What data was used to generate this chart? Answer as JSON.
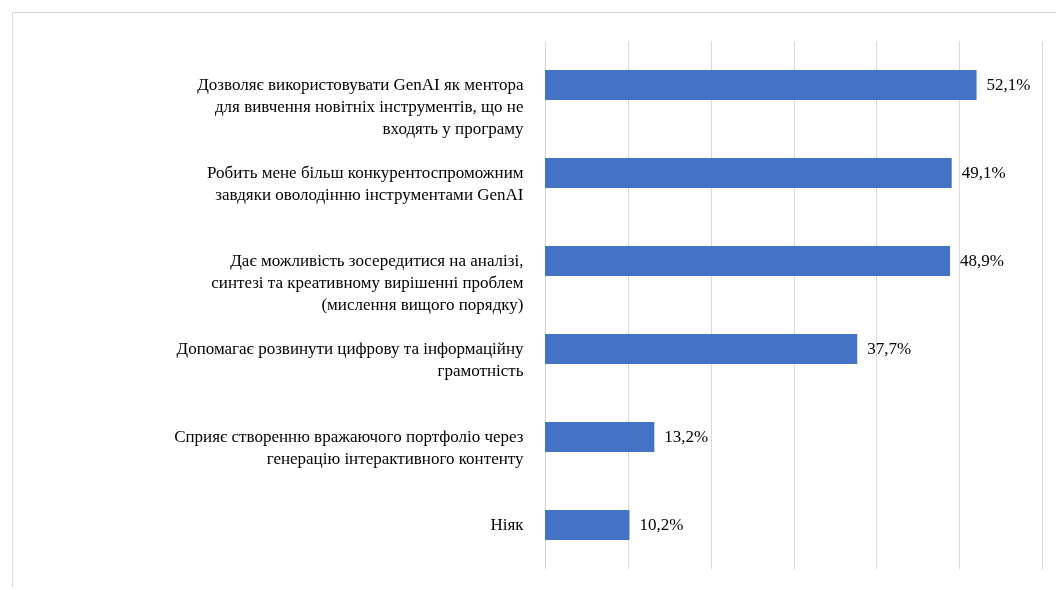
{
  "chart_data": {
    "type": "bar",
    "orientation": "horizontal",
    "categories": [
      "Дозволяє використовувати GenAI як ментора для вивчення новітніх інструментів, що не входять у програму",
      "Робить мене більш конкурентоспроможним завдяки оволодінню інструментами GenAI",
      "Дає можливість зосередитися на аналізі, синтезі та креативному вирішенні проблем (мислення вищого порядку)",
      "Допомагає розвинути цифрову та інформаційну грамотність",
      "Сприяє створенню вражаючого портфоліо через генерацію інтерактивного контенту",
      "Ніяк"
    ],
    "values": [
      52.1,
      49.1,
      48.9,
      37.7,
      13.2,
      10.2
    ],
    "value_labels": [
      "52,1%",
      "49,1%",
      "48,9%",
      "37,7%",
      "13,2%",
      "10,2%"
    ],
    "color": "#4472c4",
    "xlim": [
      0,
      60
    ],
    "xticks": [
      {
        "value": 0,
        "label": null
      },
      {
        "value": 10,
        "label": null
      },
      {
        "value": 20,
        "label": null
      },
      {
        "value": 30,
        "label": null
      },
      {
        "value": 40,
        "label": null
      },
      {
        "value": 50,
        "label": null
      },
      {
        "value": 60,
        "label": null
      }
    ],
    "grid": "x",
    "tick_labels": "y"
  }
}
